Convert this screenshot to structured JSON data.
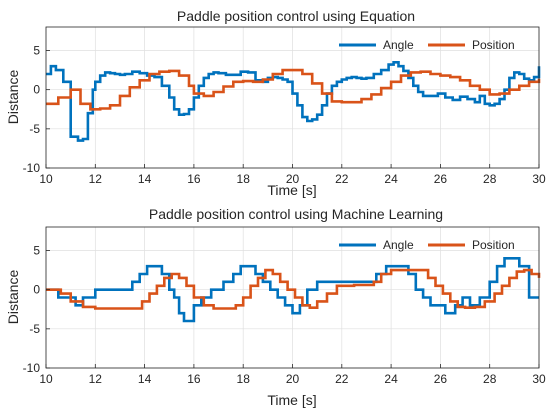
{
  "figure": {
    "background": "#ffffff",
    "grid_color": "#dfdfdf",
    "axis_color": "#262626"
  },
  "chart_data": [
    {
      "type": "line",
      "title": "Paddle position control using Equation",
      "xlabel": "Time [s]",
      "ylabel": "Distance",
      "xlim": [
        10,
        30
      ],
      "ylim": [
        -10,
        8
      ],
      "xticks": [
        10,
        12,
        14,
        16,
        18,
        20,
        22,
        24,
        26,
        28,
        30
      ],
      "yticks": [
        -10,
        -5,
        0,
        5
      ],
      "grid": true,
      "legend": "top-right",
      "series": [
        {
          "name": "Angle",
          "color": "#0072BD",
          "step": true,
          "x": [
            10,
            10.2,
            10.4,
            10.7,
            11.0,
            11.3,
            11.5,
            11.7,
            11.9,
            12.0,
            12.2,
            12.4,
            12.6,
            12.8,
            13.0,
            13.2,
            13.5,
            13.8,
            14.1,
            14.4,
            14.7,
            15.0,
            15.2,
            15.4,
            15.6,
            15.8,
            16.0,
            16.2,
            16.4,
            16.6,
            16.8,
            17.0,
            17.3,
            17.6,
            17.9,
            18.2,
            18.5,
            18.8,
            19.0,
            19.2,
            19.4,
            19.6,
            19.8,
            20.0,
            20.2,
            20.4,
            20.6,
            20.8,
            21.0,
            21.2,
            21.4,
            21.6,
            21.8,
            22.0,
            22.2,
            22.4,
            22.6,
            22.8,
            23.0,
            23.3,
            23.6,
            23.9,
            24.1,
            24.3,
            24.5,
            24.7,
            24.9,
            25.1,
            25.3,
            25.6,
            25.9,
            26.2,
            26.5,
            26.8,
            27.1,
            27.4,
            27.6,
            27.8,
            28.0,
            28.2,
            28.4,
            28.6,
            28.8,
            29.0,
            29.2,
            29.4,
            29.6,
            29.8,
            30.0
          ],
          "y": [
            2,
            3,
            2.5,
            1,
            -6,
            -6.5,
            -6.3,
            -3,
            0,
            1,
            1.8,
            2.2,
            2.1,
            2,
            1.9,
            2,
            2.3,
            2.1,
            1.8,
            1.6,
            0.5,
            -1,
            -2.5,
            -3.2,
            -3.1,
            -2.5,
            -1,
            0.5,
            1.5,
            2,
            2.2,
            2.1,
            1.9,
            1.9,
            2.3,
            2.2,
            1.2,
            1,
            1.5,
            1.6,
            1.5,
            1.3,
            1,
            -0.5,
            -2,
            -3.5,
            -4,
            -3.8,
            -3.2,
            -2,
            -0.5,
            0.5,
            1,
            1.3,
            1.5,
            1.6,
            1.5,
            1.4,
            1.5,
            2.0,
            2.5,
            3.2,
            3.5,
            3.0,
            2.4,
            1.5,
            0.5,
            -0.3,
            -0.8,
            -0.8,
            -0.5,
            -1,
            -1.3,
            -0.9,
            -1.2,
            -1.6,
            -0.8,
            -1.8,
            -2,
            -1.8,
            -1.2,
            0,
            1.5,
            2.2,
            2.0,
            1.4,
            1.2,
            1.6,
            3.0
          ]
        },
        {
          "name": "Position",
          "color": "#D95319",
          "step": true,
          "x": [
            10,
            10.5,
            11.0,
            11.4,
            11.8,
            12.2,
            12.6,
            13.0,
            13.4,
            13.8,
            14.2,
            14.6,
            15.0,
            15.4,
            15.8,
            16.0,
            16.4,
            16.8,
            17.2,
            17.6,
            18.0,
            18.4,
            18.8,
            19.2,
            19.6,
            20.0,
            20.4,
            20.8,
            21.2,
            21.6,
            22.0,
            22.4,
            22.8,
            23.2,
            23.6,
            24.0,
            24.4,
            24.8,
            25.2,
            25.6,
            26.0,
            26.4,
            26.8,
            27.2,
            27.6,
            28.0,
            28.4,
            28.8,
            29.2,
            29.6,
            30.0
          ],
          "y": [
            -1.8,
            -1.0,
            0.0,
            -1.8,
            -2.5,
            -2.4,
            -2.0,
            -0.8,
            0.3,
            1.2,
            2.0,
            2.3,
            2.4,
            1.8,
            0.5,
            -0.5,
            -0.8,
            -0.3,
            0.4,
            1.0,
            1.1,
            1.0,
            1.3,
            2.0,
            2.5,
            2.5,
            2.0,
            0.8,
            -0.5,
            -1.5,
            -1.6,
            -1.6,
            -1.2,
            -0.6,
            0.2,
            1.0,
            1.8,
            2.2,
            2.3,
            2.0,
            1.8,
            1.6,
            1.2,
            0.5,
            0.0,
            -0.6,
            -0.5,
            0.0,
            0.5,
            1.0,
            1.4
          ]
        }
      ]
    },
    {
      "type": "line",
      "title": "Paddle position control using Machine Learning",
      "xlabel": "Time [s]",
      "ylabel": "Distance",
      "xlim": [
        10,
        30
      ],
      "ylim": [
        -10,
        8
      ],
      "xticks": [
        10,
        12,
        14,
        16,
        18,
        20,
        22,
        24,
        26,
        28,
        30
      ],
      "yticks": [
        -10,
        -5,
        0,
        5
      ],
      "grid": true,
      "legend": "top-right",
      "series": [
        {
          "name": "Angle",
          "color": "#0072BD",
          "step": true,
          "x": [
            10,
            10.5,
            10.8,
            11.2,
            11.5,
            12.0,
            13.5,
            13.8,
            14.1,
            14.4,
            14.7,
            15.0,
            15.2,
            15.4,
            15.6,
            15.8,
            16.0,
            16.3,
            16.7,
            17.2,
            17.6,
            17.9,
            18.2,
            18.5,
            18.8,
            19.1,
            19.4,
            19.7,
            20.0,
            20.3,
            20.6,
            21.0,
            23.0,
            23.4,
            23.8,
            24.1,
            24.4,
            24.7,
            25.0,
            25.3,
            25.6,
            25.9,
            26.2,
            26.6,
            26.9,
            27.2,
            27.6,
            28.0,
            28.3,
            28.6,
            28.9,
            29.2,
            29.6,
            30.0
          ],
          "y": [
            0,
            -1,
            -1,
            -2,
            -1,
            0,
            1,
            2,
            3,
            3,
            2,
            0,
            -1,
            -3,
            -4,
            -4,
            -2,
            -1,
            0,
            1,
            2,
            3,
            3,
            2,
            1,
            0,
            -1,
            -2,
            -3,
            -2,
            0,
            1,
            1,
            2,
            3,
            3,
            3,
            2,
            0,
            -1,
            -2,
            -2,
            -3,
            -2,
            -1,
            -2,
            -1,
            1,
            3,
            4,
            4,
            3,
            -1,
            -1
          ]
        },
        {
          "name": "Position",
          "color": "#D95319",
          "step": true,
          "x": [
            10,
            10.6,
            11.0,
            11.5,
            12.0,
            13.6,
            13.9,
            14.2,
            14.5,
            14.8,
            15.1,
            15.4,
            15.7,
            16.0,
            16.4,
            16.8,
            17.3,
            17.7,
            18.0,
            18.3,
            18.6,
            18.9,
            19.2,
            19.5,
            19.8,
            20.1,
            20.4,
            20.7,
            21.0,
            21.4,
            21.8,
            22.5,
            23.0,
            23.3,
            23.6,
            24.0,
            24.5,
            25.0,
            25.5,
            25.8,
            26.1,
            26.4,
            26.7,
            27.0,
            27.4,
            27.8,
            28.2,
            28.5,
            28.8,
            29.1,
            29.4,
            29.7,
            30.0
          ],
          "y": [
            0,
            -0.5,
            -1.5,
            -2.2,
            -2.4,
            -2.4,
            -1.5,
            -0.5,
            0.5,
            1.5,
            2.0,
            1.5,
            0.5,
            -1.0,
            -2.0,
            -2.4,
            -2.4,
            -2.0,
            -1.0,
            0.5,
            1.5,
            2.5,
            2.0,
            1.0,
            0.0,
            -1.0,
            -2.0,
            -2.3,
            -1.5,
            -0.5,
            0.5,
            0.6,
            0.6,
            1.0,
            2.0,
            2.5,
            2.5,
            2.5,
            1.5,
            0.5,
            -0.5,
            -1.5,
            -2.2,
            -2.3,
            -2.2,
            -1.5,
            -0.5,
            0.5,
            1.5,
            2.3,
            2.5,
            2.0,
            1.5
          ]
        }
      ]
    }
  ]
}
